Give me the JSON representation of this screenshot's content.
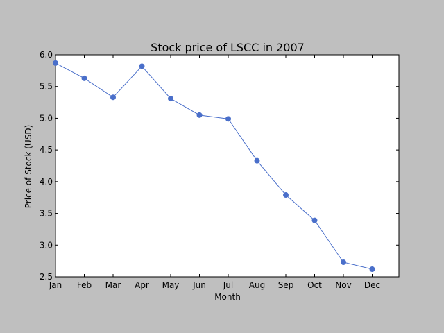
{
  "chart_data": {
    "type": "line",
    "title": "Stock price of LSCC in 2007",
    "xlabel": "Month",
    "ylabel": "Price of Stock (USD)",
    "categories": [
      "Jan",
      "Feb",
      "Mar",
      "Apr",
      "May",
      "Jun",
      "Jul",
      "Aug",
      "Sep",
      "Oct",
      "Nov",
      "Dec"
    ],
    "series": [
      {
        "values": [
          5.87,
          5.63,
          5.33,
          5.82,
          5.31,
          5.05,
          4.99,
          4.33,
          3.79,
          3.39,
          2.73,
          2.62
        ]
      }
    ],
    "ylim": [
      2.5,
      6.0
    ],
    "yticks": [
      "2.5",
      "3.0",
      "3.5",
      "4.0",
      "4.5",
      "5.0",
      "5.5",
      "6.0"
    ],
    "grid": false,
    "line_color": "#4a6fca",
    "marker": "circle"
  }
}
